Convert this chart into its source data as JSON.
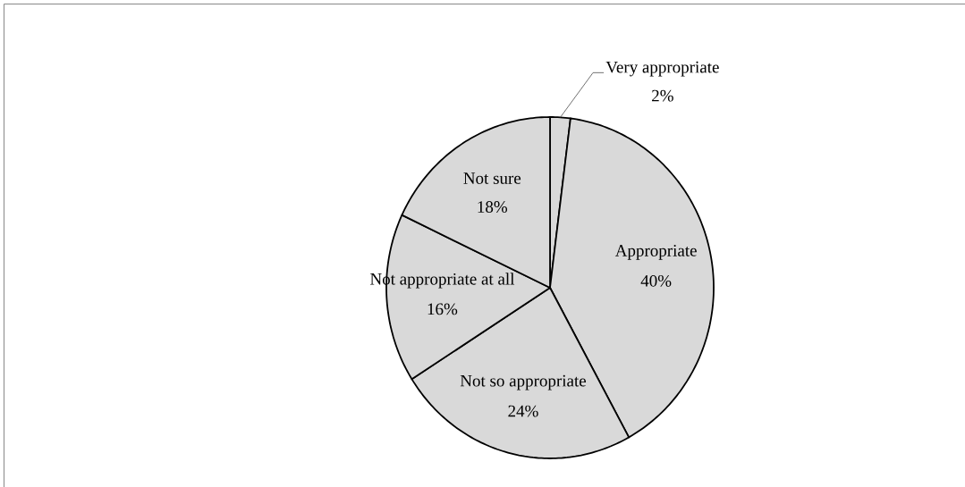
{
  "chart_data": {
    "type": "pie",
    "categories": [
      "Very appropriate",
      "Appropriate",
      "Not so appropriate",
      "Not appropriate at all",
      "Not sure"
    ],
    "values": [
      2,
      40,
      24,
      16,
      18
    ],
    "value_labels": [
      "2%",
      "40%",
      "24%",
      "16%",
      "18%"
    ],
    "colors": [
      "#d9d9d9",
      "#d9d9d9",
      "#d9d9d9",
      "#d9d9d9",
      "#d9d9d9"
    ]
  }
}
